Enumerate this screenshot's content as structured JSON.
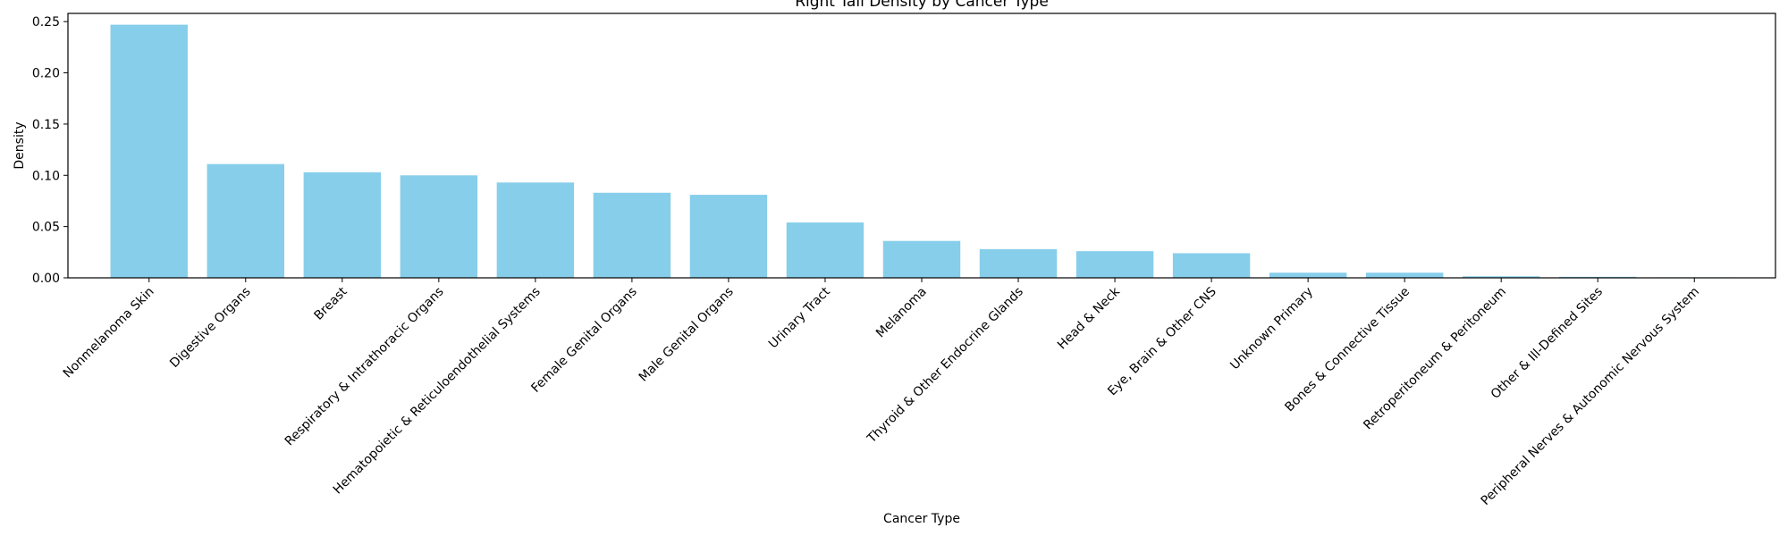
{
  "chart_data": {
    "type": "bar",
    "title": "Right Tail Density by Cancer Type",
    "xlabel": "Cancer Type",
    "ylabel": "Density",
    "ylim": [
      0,
      0.258
    ],
    "yticks": [
      "0.00",
      "0.05",
      "0.10",
      "0.15",
      "0.20",
      "0.25"
    ],
    "ytick_values": [
      0,
      0.05,
      0.1,
      0.15,
      0.2,
      0.25
    ],
    "grid": false,
    "bar_color": "#87ceeb",
    "categories": [
      "Nonmelanoma Skin",
      "Digestive Organs",
      "Breast",
      "Respiratory & Intrathoracic Organs",
      "Hematopoietic & Reticuloendothelial Systems",
      "Female Genital Organs",
      "Male Genital Organs",
      "Urinary Tract",
      "Melanoma",
      "Thyroid & Other Endocrine Glands",
      "Head & Neck",
      "Eye, Brain & Other CNS",
      "Unknown Primary",
      "Bones & Connective Tissue",
      "Retroperitoneum & Peritoneum",
      "Other & Ill-Defined Sites",
      "Peripheral Nerves & Autonomic Nervous System"
    ],
    "values": [
      0.247,
      0.111,
      0.103,
      0.1,
      0.093,
      0.083,
      0.081,
      0.054,
      0.036,
      0.028,
      0.026,
      0.024,
      0.005,
      0.005,
      0.0015,
      0.001,
      0.0005
    ]
  }
}
